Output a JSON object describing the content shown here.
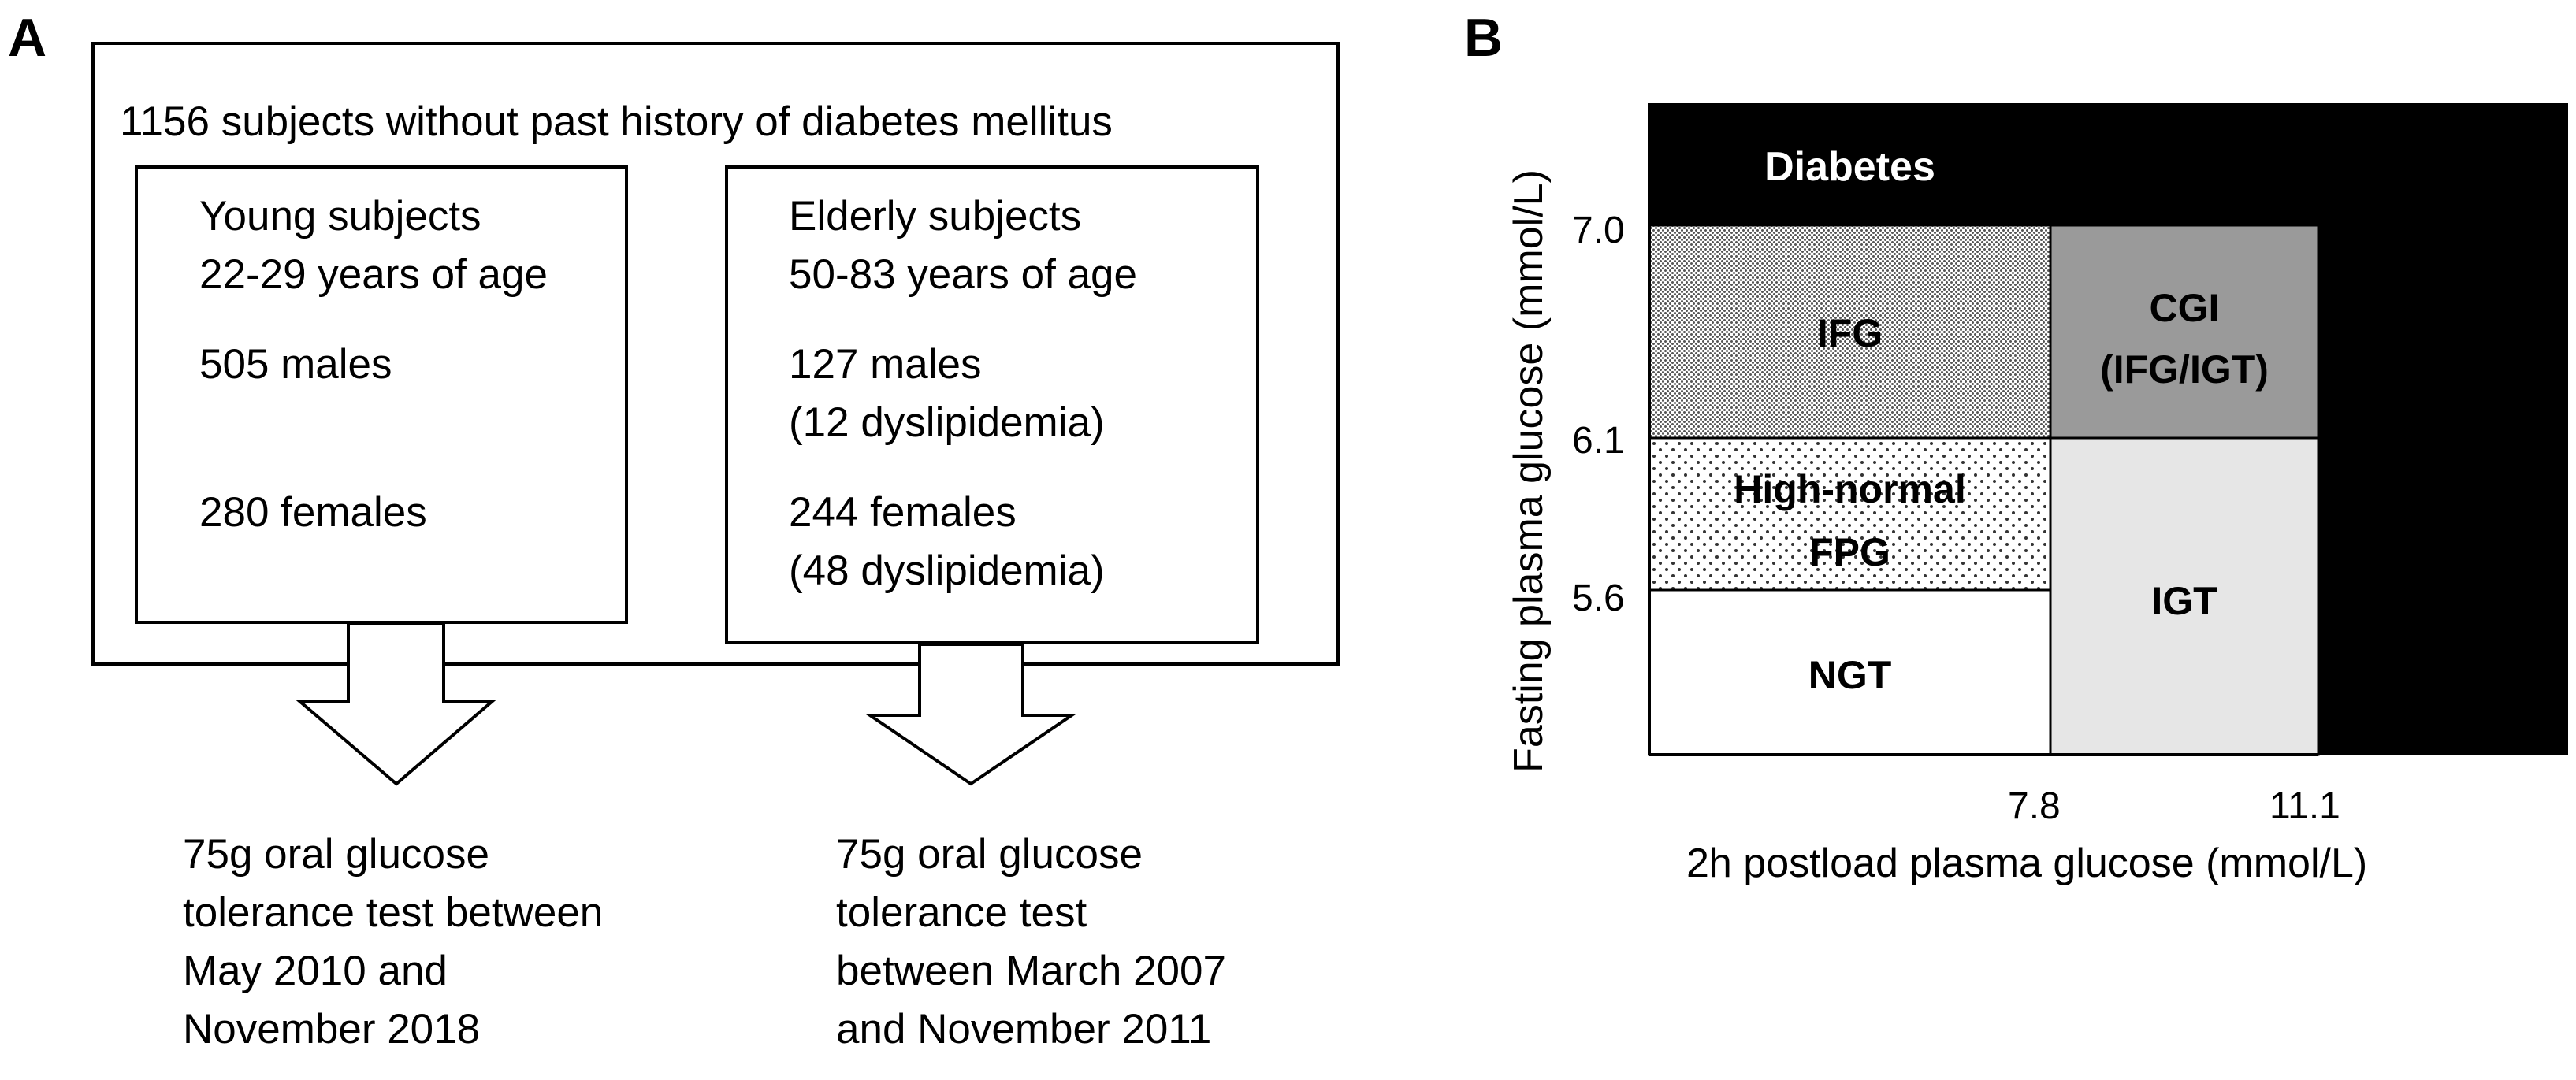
{
  "panel_a": {
    "label": "A",
    "outer_box_title": "1156 subjects without past history of diabetes mellitus",
    "young": {
      "title": "Young subjects",
      "age": "22-29 years of age",
      "males": "505 males",
      "females": "280 females"
    },
    "elderly": {
      "title": "Elderly subjects",
      "age": "50-83 years of age",
      "males": "127 males",
      "males_note": "(12 dyslipidemia)",
      "females": "244 females",
      "females_note": "(48 dyslipidemia)"
    },
    "young_test": [
      "75g oral glucose",
      "tolerance test between",
      "May 2010 and",
      "November 2018"
    ],
    "elderly_test": [
      "75g oral glucose",
      "tolerance test",
      "between March 2007",
      "and November 2011"
    ]
  },
  "panel_b": {
    "label": "B",
    "xlabel": "2h postload plasma glucose (mmol/L)",
    "ylabel": "Fasting plasma glucose (mmol/L)",
    "x_ticks": [
      "7.8",
      "11.1"
    ],
    "y_ticks": [
      "7.0",
      "6.1",
      "5.6"
    ],
    "regions": {
      "diabetes": "Diabetes",
      "ifg": "IFG",
      "cgi_line1": "CGI",
      "cgi_line2": "(IFG/IGT)",
      "high_normal_line1": "High-normal",
      "high_normal_line2": "FPG",
      "igt": "IGT",
      "ngt": "NGT"
    },
    "colors": {
      "diabetes": "#000000",
      "cgi": "#9a9a9a",
      "igt": "#e6e6e6",
      "ngt": "#ffffff"
    }
  },
  "chart_data": {
    "type": "heatmap",
    "title": "",
    "xlabel": "2h postload plasma glucose (mmol/L)",
    "ylabel": "Fasting plasma glucose (mmol/L)",
    "x_thresholds": [
      7.8,
      11.1
    ],
    "y_thresholds": [
      5.6,
      6.1,
      7.0
    ],
    "regions": [
      {
        "name": "NGT",
        "x_range": "<7.8",
        "y_range": "<5.6"
      },
      {
        "name": "High-normal FPG",
        "x_range": "<7.8",
        "y_range": "5.6-6.1"
      },
      {
        "name": "IFG",
        "x_range": "<7.8",
        "y_range": "6.1-7.0"
      },
      {
        "name": "IGT",
        "x_range": "7.8-11.1",
        "y_range": "<6.1"
      },
      {
        "name": "CGI (IFG/IGT)",
        "x_range": "7.8-11.1",
        "y_range": "6.1-7.0"
      },
      {
        "name": "Diabetes",
        "x_range": ">=11.1 or any",
        "y_range": ">=7.0 or any"
      }
    ]
  }
}
